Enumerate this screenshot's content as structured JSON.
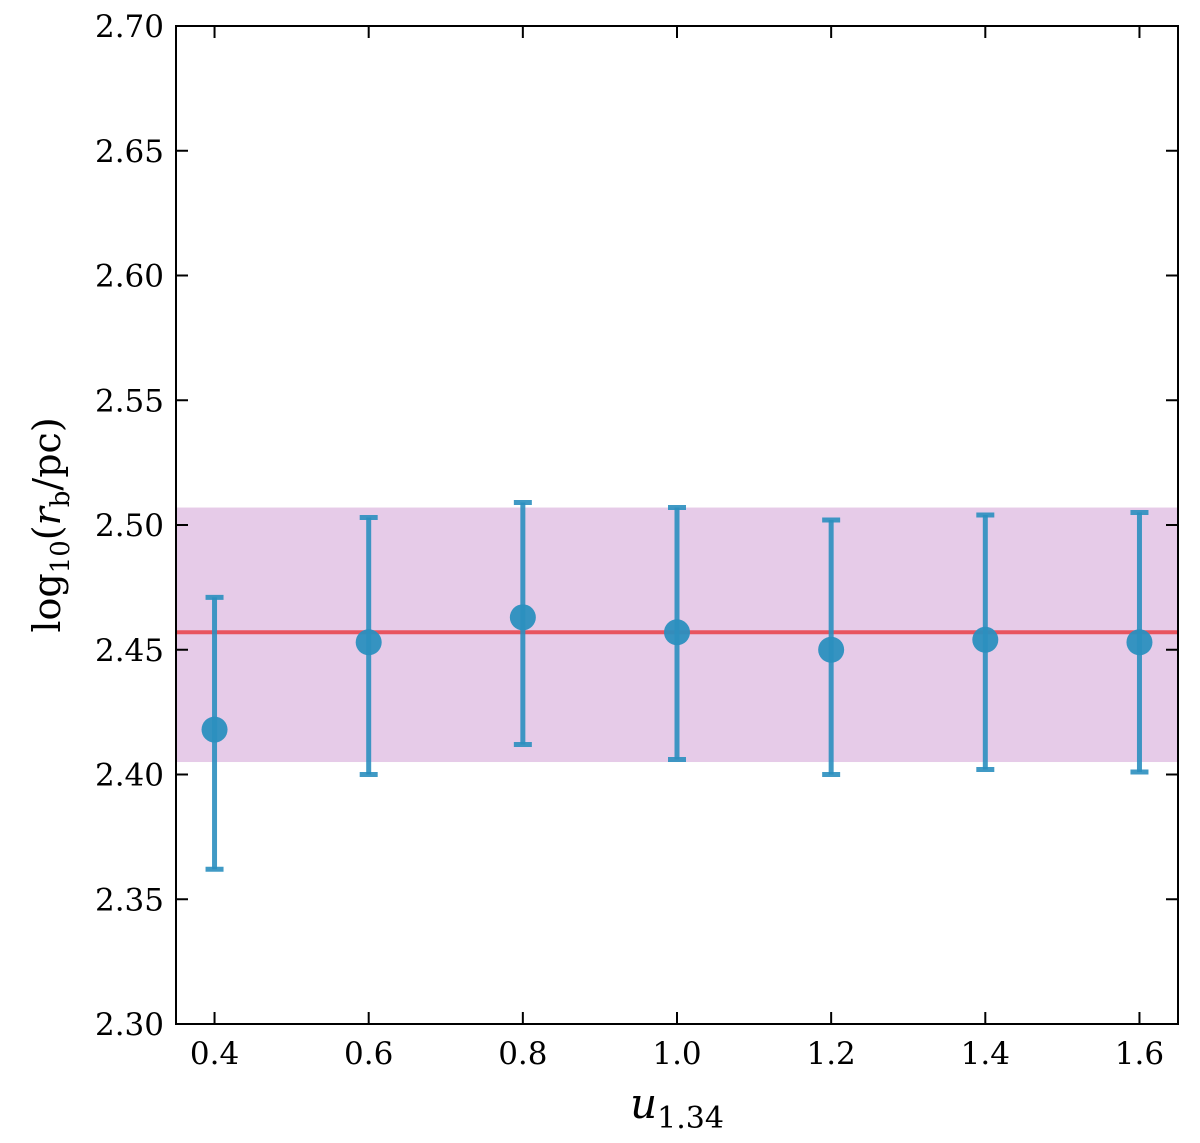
{
  "chart_data": {
    "type": "scatter",
    "xlabel": "u",
    "xlabel_sub": "1.34",
    "ylabel_pre": "log",
    "ylabel_sub": "10",
    "ylabel_open": "(",
    "ylabel_var": "r",
    "ylabel_var_sub": "b",
    "ylabel_rest": "/pc)",
    "xlim": [
      0.35,
      1.65
    ],
    "ylim": [
      2.3,
      2.7
    ],
    "xticks": [
      "0.4",
      "0.6",
      "0.8",
      "1.0",
      "1.2",
      "1.4",
      "1.6"
    ],
    "yticks": [
      "2.30",
      "2.35",
      "2.40",
      "2.45",
      "2.50",
      "2.55",
      "2.60",
      "2.65",
      "2.70"
    ],
    "grid": false,
    "points": [
      {
        "x": 0.4,
        "y": 2.418,
        "y_low": 2.362,
        "y_high": 2.471
      },
      {
        "x": 0.6,
        "y": 2.453,
        "y_low": 2.4,
        "y_high": 2.503
      },
      {
        "x": 0.8,
        "y": 2.463,
        "y_low": 2.412,
        "y_high": 2.509
      },
      {
        "x": 1.0,
        "y": 2.457,
        "y_low": 2.406,
        "y_high": 2.507
      },
      {
        "x": 1.2,
        "y": 2.45,
        "y_low": 2.4,
        "y_high": 2.502
      },
      {
        "x": 1.4,
        "y": 2.454,
        "y_low": 2.402,
        "y_high": 2.504
      },
      {
        "x": 1.6,
        "y": 2.453,
        "y_low": 2.401,
        "y_high": 2.505
      }
    ],
    "reference_line": {
      "y": 2.457,
      "color": "#e8545f"
    },
    "band": {
      "y_low": 2.405,
      "y_high": 2.507,
      "color": "#d6a8d9"
    },
    "marker_color": "#2b8fbf"
  }
}
